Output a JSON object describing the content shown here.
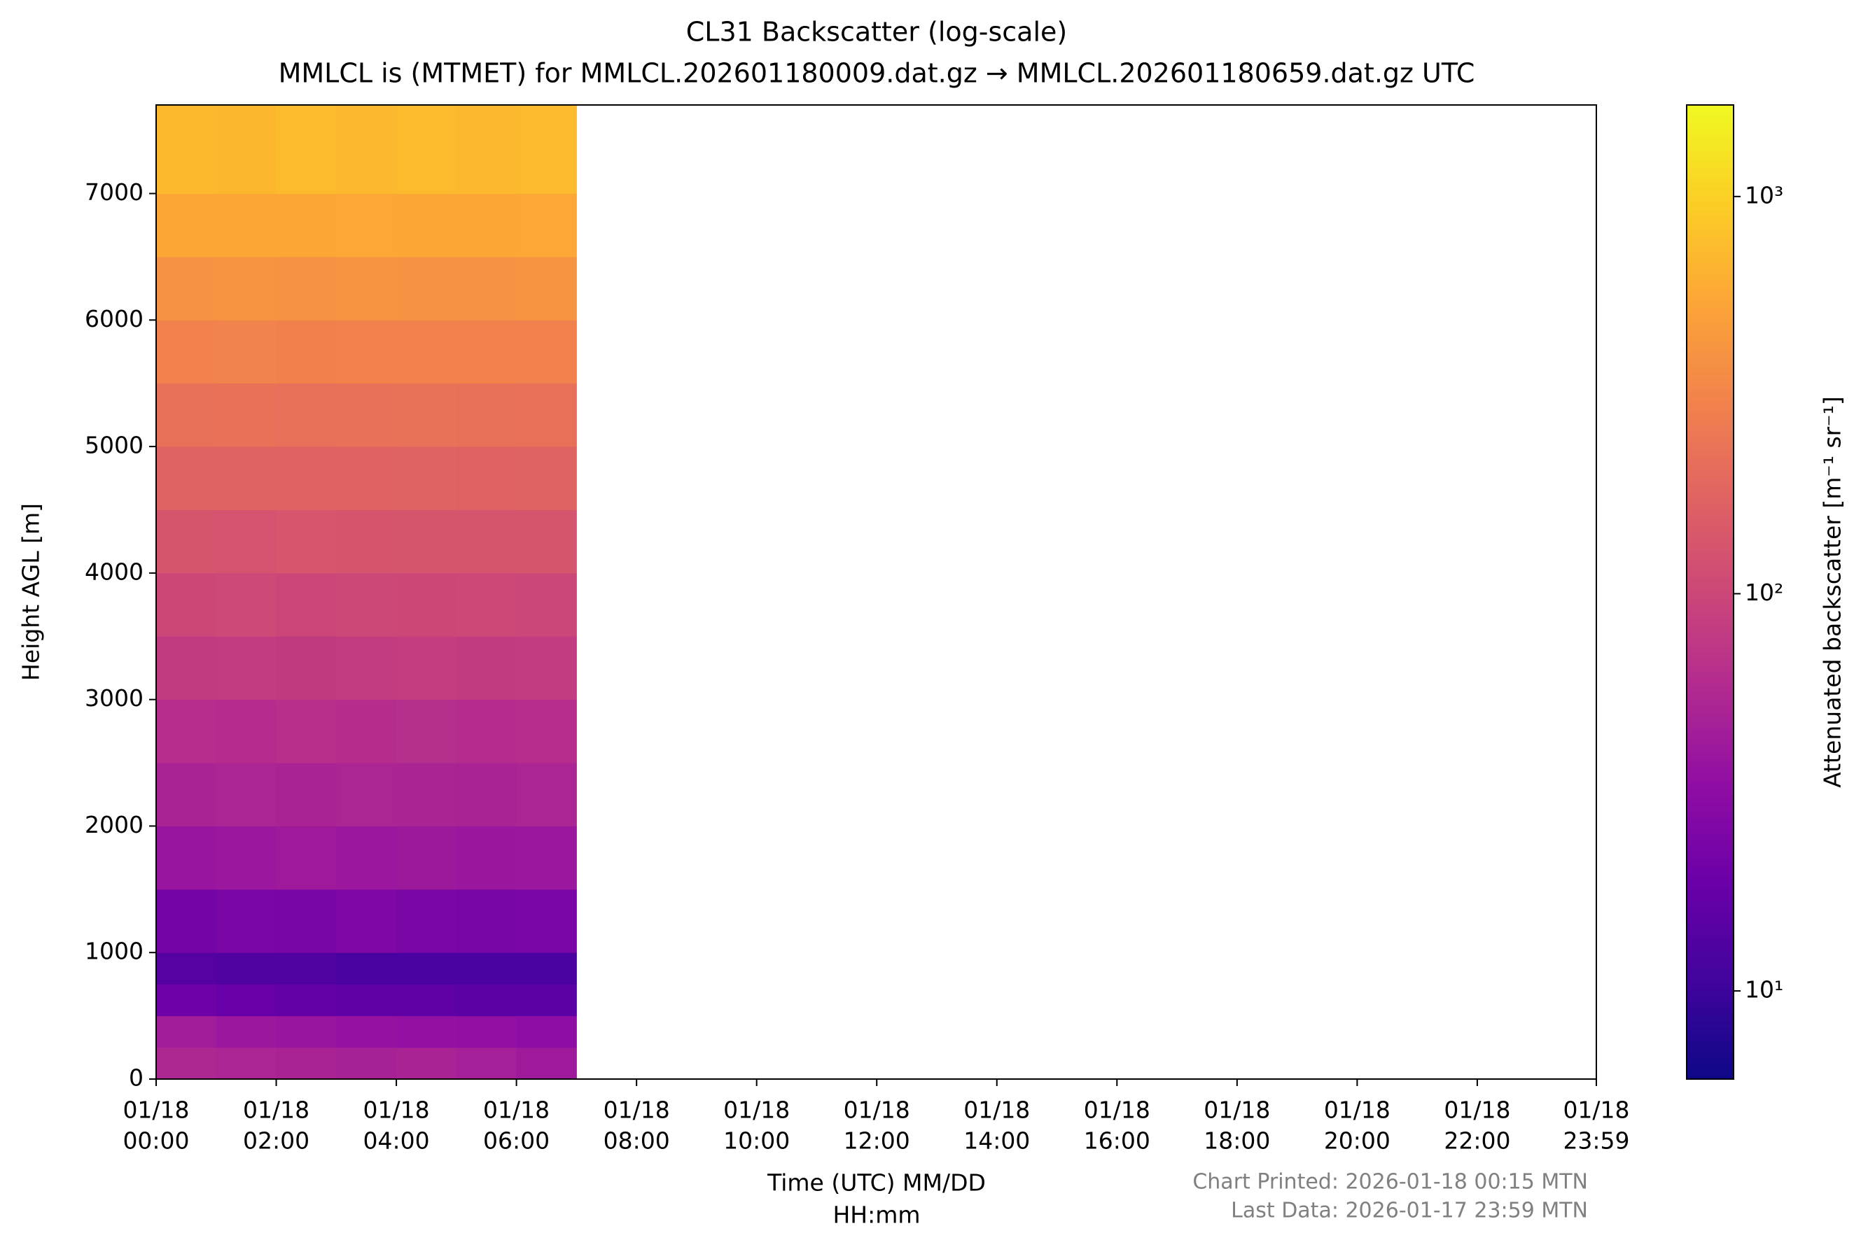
{
  "chart_data": {
    "type": "heatmap",
    "title": [
      "CL31 Backscatter (log-scale)",
      "MMLCL is (MTMET) for MMLCL.202601180009.dat.gz → MMLCL.202601180659.dat.gz UTC"
    ],
    "xlabel": [
      "Time (UTC) MM/DD",
      "HH:mm"
    ],
    "ylabel": "Height AGL [m]",
    "colorbar_label": "Attenuated backscatter [m⁻¹ sr⁻¹]",
    "colormap": "plasma",
    "color_scale": "log",
    "clim": [
      6,
      1700
    ],
    "cticks": [
      {
        "value": 10,
        "label": "10¹"
      },
      {
        "value": 100,
        "label": "10²"
      },
      {
        "value": 1000,
        "label": "10³"
      }
    ],
    "xlim": [
      0,
      23.983
    ],
    "xticks": [
      {
        "value": 0,
        "label": [
          "01/18",
          "00:00"
        ]
      },
      {
        "value": 2,
        "label": [
          "01/18",
          "02:00"
        ]
      },
      {
        "value": 4,
        "label": [
          "01/18",
          "04:00"
        ]
      },
      {
        "value": 6,
        "label": [
          "01/18",
          "06:00"
        ]
      },
      {
        "value": 8,
        "label": [
          "01/18",
          "08:00"
        ]
      },
      {
        "value": 10,
        "label": [
          "01/18",
          "10:00"
        ]
      },
      {
        "value": 12,
        "label": [
          "01/18",
          "12:00"
        ]
      },
      {
        "value": 14,
        "label": [
          "01/18",
          "14:00"
        ]
      },
      {
        "value": 16,
        "label": [
          "01/18",
          "16:00"
        ]
      },
      {
        "value": 18,
        "label": [
          "01/18",
          "18:00"
        ]
      },
      {
        "value": 20,
        "label": [
          "01/18",
          "20:00"
        ]
      },
      {
        "value": 22,
        "label": [
          "01/18",
          "22:00"
        ]
      },
      {
        "value": 23.983,
        "label": [
          "01/18",
          "23:59"
        ]
      }
    ],
    "ylim": [
      0,
      7700
    ],
    "yticks": [
      0,
      1000,
      2000,
      3000,
      4000,
      5000,
      6000,
      7000
    ],
    "x_bins": [
      0,
      1,
      2,
      3,
      4,
      5,
      6,
      7
    ],
    "y_bins": [
      0,
      250,
      500,
      750,
      1000,
      1500,
      2000,
      2500,
      3000,
      3500,
      4000,
      4500,
      5000,
      5500,
      6000,
      6500,
      7000,
      7700
    ],
    "z": [
      [
        55,
        52,
        50,
        48,
        50,
        46,
        42
      ],
      [
        45,
        40,
        38,
        36,
        35,
        34,
        32
      ],
      [
        20,
        18,
        17,
        16,
        16,
        15,
        15
      ],
      [
        14,
        13,
        13,
        12,
        12,
        12,
        12
      ],
      [
        22,
        24,
        23,
        25,
        24,
        23,
        24
      ],
      [
        38,
        40,
        42,
        40,
        41,
        39,
        40
      ],
      [
        50,
        52,
        50,
        53,
        51,
        50,
        52
      ],
      [
        62,
        60,
        64,
        61,
        63,
        60,
        62
      ],
      [
        80,
        82,
        79,
        81,
        83,
        80,
        81
      ],
      [
        100,
        104,
        98,
        102,
        100,
        103,
        99
      ],
      [
        130,
        128,
        134,
        131,
        129,
        132,
        130
      ],
      [
        170,
        174,
        168,
        172,
        170,
        169,
        173
      ],
      [
        220,
        225,
        218,
        222,
        226,
        219,
        221
      ],
      [
        300,
        305,
        295,
        302,
        298,
        304,
        300
      ],
      [
        400,
        410,
        395,
        405,
        400,
        398,
        408
      ],
      [
        550,
        560,
        545,
        555,
        548,
        552,
        558
      ],
      [
        720,
        700,
        740,
        710,
        730,
        705,
        725
      ]
    ],
    "footnotes": [
      "Chart Printed: 2026-01-18 00:15 MTN",
      "Last Data: 2026-01-17 23:59 MTN"
    ]
  }
}
